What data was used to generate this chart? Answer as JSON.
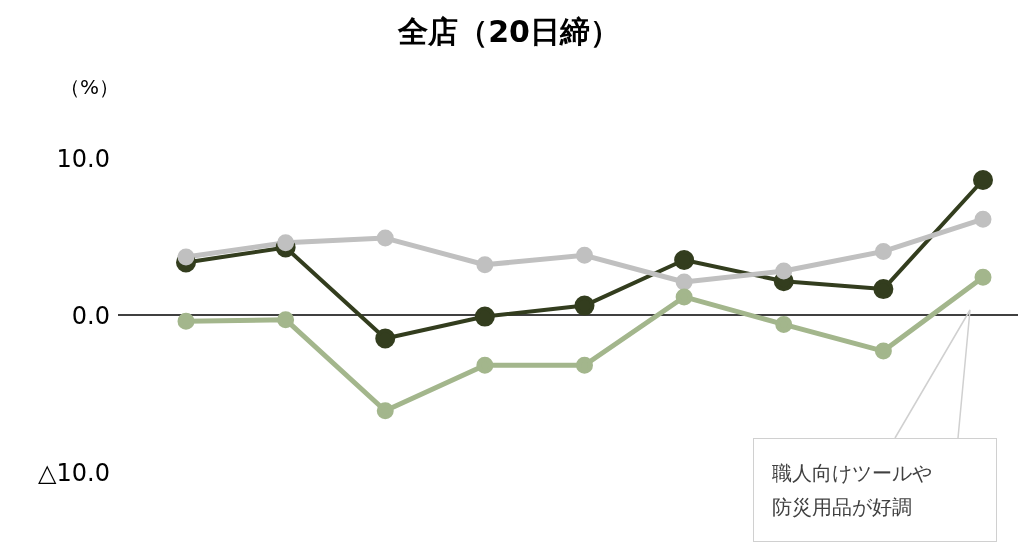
{
  "chart_data": {
    "type": "line",
    "title": "全店（20日締）",
    "ylabel": "（%）",
    "categories": [
      null,
      null,
      null,
      null,
      null,
      null,
      null,
      null,
      null
    ],
    "series": [
      {
        "color": "#333d1e",
        "values": [
          3.35,
          4.3,
          -1.5,
          -0.1,
          0.6,
          3.5,
          2.15,
          1.65,
          8.6
        ]
      },
      {
        "color": "#c0c0c0",
        "values": [
          3.7,
          4.6,
          4.9,
          3.2,
          3.8,
          2.1,
          2.8,
          4.05,
          6.1
        ]
      },
      {
        "color": "#a3b68c",
        "values": [
          -0.4,
          -0.3,
          -6.1,
          -3.2,
          -3.2,
          1.15,
          -0.6,
          -2.3,
          2.4
        ]
      }
    ],
    "ylim": [
      -10,
      10
    ],
    "yticks": [
      {
        "value": -10,
        "label": "△10.0"
      },
      {
        "value": 0,
        "label": "0.0"
      },
      {
        "value": 10,
        "label": "10.0"
      }
    ],
    "ref_lines": [
      {
        "axis": "y",
        "value": 0,
        "color": "#000000"
      }
    ],
    "annotations": [
      "職人向けツールや防災用品が好調"
    ],
    "tick_labels": "y",
    "grid": false,
    "legend": false,
    "marker": "circle",
    "line_style": "solid"
  }
}
